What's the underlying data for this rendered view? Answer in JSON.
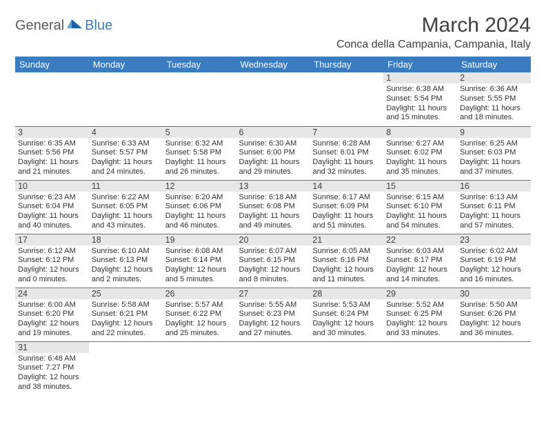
{
  "logo": {
    "text1": "General",
    "text2": "Blue"
  },
  "title": "March 2024",
  "location": "Conca della Campania, Campania, Italy",
  "dayHeaders": [
    "Sunday",
    "Monday",
    "Tuesday",
    "Wednesday",
    "Thursday",
    "Friday",
    "Saturday"
  ],
  "colors": {
    "headerBg": "#3b7bbf",
    "headerText": "#ffffff",
    "dayNumBg": "#e7e7e7",
    "rowBorder": "#3b7bbf",
    "logoGray": "#5a5a5a",
    "logoBlue": "#3b7bbf"
  },
  "weeks": [
    [
      null,
      null,
      null,
      null,
      null,
      {
        "n": "1",
        "sunrise": "Sunrise: 6:38 AM",
        "sunset": "Sunset: 5:54 PM",
        "daylight": "Daylight: 11 hours and 15 minutes."
      },
      {
        "n": "2",
        "sunrise": "Sunrise: 6:36 AM",
        "sunset": "Sunset: 5:55 PM",
        "daylight": "Daylight: 11 hours and 18 minutes."
      }
    ],
    [
      {
        "n": "3",
        "sunrise": "Sunrise: 6:35 AM",
        "sunset": "Sunset: 5:56 PM",
        "daylight": "Daylight: 11 hours and 21 minutes."
      },
      {
        "n": "4",
        "sunrise": "Sunrise: 6:33 AM",
        "sunset": "Sunset: 5:57 PM",
        "daylight": "Daylight: 11 hours and 24 minutes."
      },
      {
        "n": "5",
        "sunrise": "Sunrise: 6:32 AM",
        "sunset": "Sunset: 5:58 PM",
        "daylight": "Daylight: 11 hours and 26 minutes."
      },
      {
        "n": "6",
        "sunrise": "Sunrise: 6:30 AM",
        "sunset": "Sunset: 6:00 PM",
        "daylight": "Daylight: 11 hours and 29 minutes."
      },
      {
        "n": "7",
        "sunrise": "Sunrise: 6:28 AM",
        "sunset": "Sunset: 6:01 PM",
        "daylight": "Daylight: 11 hours and 32 minutes."
      },
      {
        "n": "8",
        "sunrise": "Sunrise: 6:27 AM",
        "sunset": "Sunset: 6:02 PM",
        "daylight": "Daylight: 11 hours and 35 minutes."
      },
      {
        "n": "9",
        "sunrise": "Sunrise: 6:25 AM",
        "sunset": "Sunset: 6:03 PM",
        "daylight": "Daylight: 11 hours and 37 minutes."
      }
    ],
    [
      {
        "n": "10",
        "sunrise": "Sunrise: 6:23 AM",
        "sunset": "Sunset: 6:04 PM",
        "daylight": "Daylight: 11 hours and 40 minutes."
      },
      {
        "n": "11",
        "sunrise": "Sunrise: 6:22 AM",
        "sunset": "Sunset: 6:05 PM",
        "daylight": "Daylight: 11 hours and 43 minutes."
      },
      {
        "n": "12",
        "sunrise": "Sunrise: 6:20 AM",
        "sunset": "Sunset: 6:06 PM",
        "daylight": "Daylight: 11 hours and 46 minutes."
      },
      {
        "n": "13",
        "sunrise": "Sunrise: 6:18 AM",
        "sunset": "Sunset: 6:08 PM",
        "daylight": "Daylight: 11 hours and 49 minutes."
      },
      {
        "n": "14",
        "sunrise": "Sunrise: 6:17 AM",
        "sunset": "Sunset: 6:09 PM",
        "daylight": "Daylight: 11 hours and 51 minutes."
      },
      {
        "n": "15",
        "sunrise": "Sunrise: 6:15 AM",
        "sunset": "Sunset: 6:10 PM",
        "daylight": "Daylight: 11 hours and 54 minutes."
      },
      {
        "n": "16",
        "sunrise": "Sunrise: 6:13 AM",
        "sunset": "Sunset: 6:11 PM",
        "daylight": "Daylight: 11 hours and 57 minutes."
      }
    ],
    [
      {
        "n": "17",
        "sunrise": "Sunrise: 6:12 AM",
        "sunset": "Sunset: 6:12 PM",
        "daylight": "Daylight: 12 hours and 0 minutes."
      },
      {
        "n": "18",
        "sunrise": "Sunrise: 6:10 AM",
        "sunset": "Sunset: 6:13 PM",
        "daylight": "Daylight: 12 hours and 2 minutes."
      },
      {
        "n": "19",
        "sunrise": "Sunrise: 6:08 AM",
        "sunset": "Sunset: 6:14 PM",
        "daylight": "Daylight: 12 hours and 5 minutes."
      },
      {
        "n": "20",
        "sunrise": "Sunrise: 6:07 AM",
        "sunset": "Sunset: 6:15 PM",
        "daylight": "Daylight: 12 hours and 8 minutes."
      },
      {
        "n": "21",
        "sunrise": "Sunrise: 6:05 AM",
        "sunset": "Sunset: 6:16 PM",
        "daylight": "Daylight: 12 hours and 11 minutes."
      },
      {
        "n": "22",
        "sunrise": "Sunrise: 6:03 AM",
        "sunset": "Sunset: 6:17 PM",
        "daylight": "Daylight: 12 hours and 14 minutes."
      },
      {
        "n": "23",
        "sunrise": "Sunrise: 6:02 AM",
        "sunset": "Sunset: 6:19 PM",
        "daylight": "Daylight: 12 hours and 16 minutes."
      }
    ],
    [
      {
        "n": "24",
        "sunrise": "Sunrise: 6:00 AM",
        "sunset": "Sunset: 6:20 PM",
        "daylight": "Daylight: 12 hours and 19 minutes."
      },
      {
        "n": "25",
        "sunrise": "Sunrise: 5:58 AM",
        "sunset": "Sunset: 6:21 PM",
        "daylight": "Daylight: 12 hours and 22 minutes."
      },
      {
        "n": "26",
        "sunrise": "Sunrise: 5:57 AM",
        "sunset": "Sunset: 6:22 PM",
        "daylight": "Daylight: 12 hours and 25 minutes."
      },
      {
        "n": "27",
        "sunrise": "Sunrise: 5:55 AM",
        "sunset": "Sunset: 6:23 PM",
        "daylight": "Daylight: 12 hours and 27 minutes."
      },
      {
        "n": "28",
        "sunrise": "Sunrise: 5:53 AM",
        "sunset": "Sunset: 6:24 PM",
        "daylight": "Daylight: 12 hours and 30 minutes."
      },
      {
        "n": "29",
        "sunrise": "Sunrise: 5:52 AM",
        "sunset": "Sunset: 6:25 PM",
        "daylight": "Daylight: 12 hours and 33 minutes."
      },
      {
        "n": "30",
        "sunrise": "Sunrise: 5:50 AM",
        "sunset": "Sunset: 6:26 PM",
        "daylight": "Daylight: 12 hours and 36 minutes."
      }
    ],
    [
      {
        "n": "31",
        "sunrise": "Sunrise: 6:48 AM",
        "sunset": "Sunset: 7:27 PM",
        "daylight": "Daylight: 12 hours and 38 minutes."
      },
      null,
      null,
      null,
      null,
      null,
      null
    ]
  ]
}
